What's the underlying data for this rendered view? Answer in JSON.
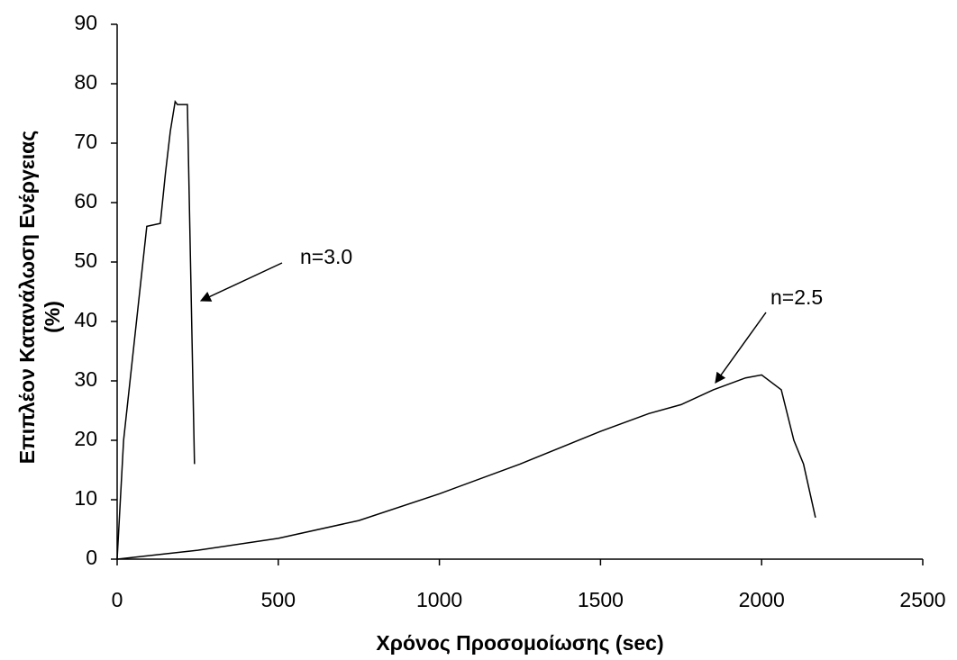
{
  "chart_data": {
    "type": "line",
    "xlabel": "Χρόνος Προσομοίωσης (sec)",
    "ylabel": [
      "Επιπλέον Κατανάλωση Ενέργειας",
      "(%)"
    ],
    "xlim": [
      0,
      2500
    ],
    "xticks": [
      0,
      500,
      1000,
      1500,
      2000,
      2500
    ],
    "ylim": [
      0,
      90
    ],
    "yticks": [
      0,
      10,
      20,
      30,
      40,
      50,
      60,
      70,
      80,
      90
    ],
    "series": [
      {
        "name": "n=3.0",
        "color": "#000000",
        "x": [
          0,
          20,
          40,
          70,
          92,
          134,
          150,
          165,
          180,
          187,
          200,
          218,
          240
        ],
        "values": [
          0,
          20,
          30,
          45,
          56,
          56.5,
          65,
          72,
          77,
          76.5,
          76.5,
          76.5,
          16
        ]
      },
      {
        "name": "n=2.5",
        "color": "#000000",
        "x": [
          0,
          250,
          500,
          750,
          1000,
          1250,
          1500,
          1650,
          1750,
          1850,
          1950,
          2000,
          2061,
          2100,
          2130,
          2167
        ],
        "values": [
          0,
          1.5,
          3.5,
          6.5,
          11,
          16,
          21.5,
          24.5,
          26,
          28.5,
          30.5,
          31,
          28.5,
          20,
          16,
          7
        ]
      }
    ]
  }
}
